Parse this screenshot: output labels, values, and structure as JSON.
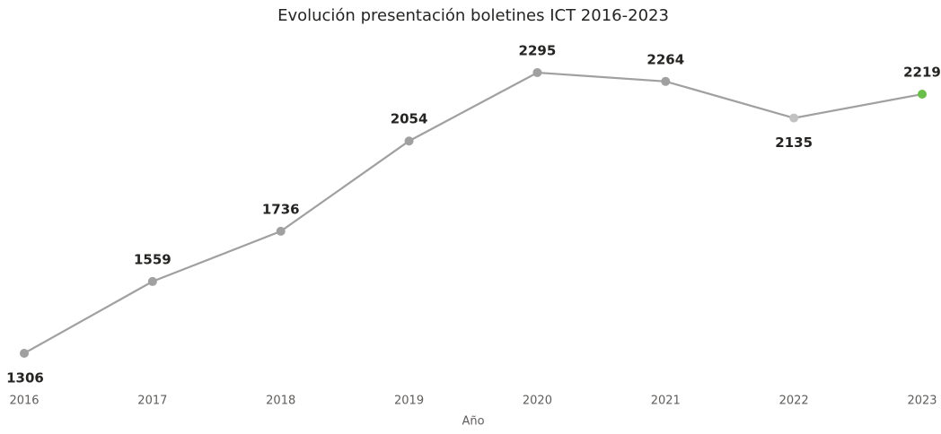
{
  "chart_data": {
    "type": "line",
    "title": "Evolución presentación boletines ICT 2016-2023",
    "x_label": "Año",
    "categories": [
      "2016",
      "2017",
      "2018",
      "2019",
      "2020",
      "2021",
      "2022",
      "2023"
    ],
    "series": [
      {
        "name": "Boletines",
        "color": "#a0a0a0",
        "values": [
          1306,
          1559,
          1736,
          2054,
          2295,
          2264,
          2135,
          2219
        ],
        "point_colors": [
          "#a0a0a0",
          "#a0a0a0",
          "#a0a0a0",
          "#a0a0a0",
          "#a0a0a0",
          "#a0a0a0",
          "#c2c2c2",
          "#6abf4b"
        ]
      }
    ],
    "ylim": [
      1250,
      2360
    ]
  }
}
